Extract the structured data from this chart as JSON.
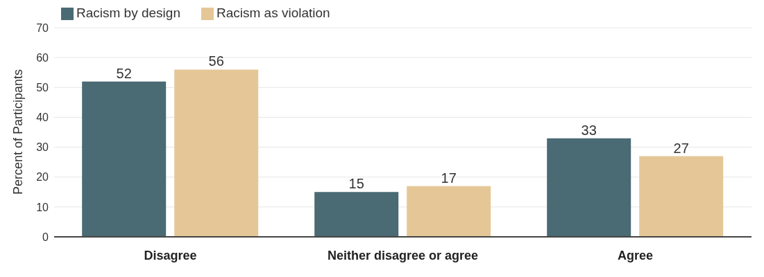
{
  "chart_data": {
    "type": "bar",
    "ylabel": "Percent of Participants",
    "categories": [
      "Disagree",
      "Neither disagree or agree",
      "Agree"
    ],
    "series": [
      {
        "name": "Racism by design",
        "color": "#4a6a74",
        "values": [
          52,
          15,
          33
        ]
      },
      {
        "name": "Racism as violation",
        "color": "#e5c797",
        "values": [
          56,
          17,
          27
        ]
      }
    ],
    "ylim": [
      0,
      70
    ],
    "yticks": [
      0,
      10,
      20,
      30,
      40,
      50,
      60,
      70
    ],
    "grid": "y",
    "legend": "top left",
    "data_labels": true
  }
}
